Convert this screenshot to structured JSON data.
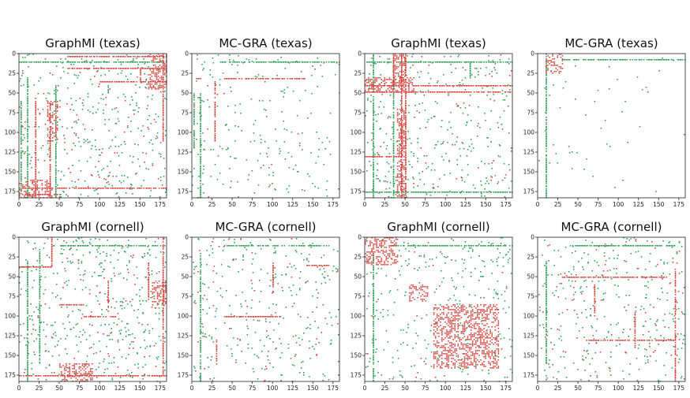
{
  "colors": {
    "positive": "#2e9e55",
    "negative": "#d9413b",
    "axis": "#222222"
  },
  "chart_data": [
    {
      "type": "heatmap",
      "title": "GraphMI (texas)",
      "xlim": [
        0,
        183
      ],
      "ylim": [
        183,
        0
      ],
      "xticks": [
        0,
        25,
        50,
        75,
        100,
        125,
        150,
        175
      ],
      "yticks": [
        0,
        25,
        50,
        75,
        100,
        125,
        150,
        175
      ],
      "seed": 11,
      "density": 0.01,
      "green_lines": [
        [
          0,
          10,
          183,
          10
        ],
        [
          10,
          30,
          10,
          183
        ],
        [
          2,
          60,
          2,
          183
        ],
        [
          45,
          40,
          45,
          183
        ],
        [
          110,
          40,
          110,
          50
        ]
      ],
      "red_lines": [
        [
          60,
          3,
          183,
          3
        ],
        [
          60,
          18,
          183,
          18
        ],
        [
          5,
          170,
          183,
          170
        ],
        [
          5,
          178,
          50,
          178
        ],
        [
          20,
          60,
          20,
          183
        ],
        [
          38,
          60,
          38,
          183
        ],
        [
          178,
          0,
          178,
          110
        ],
        [
          100,
          35,
          183,
          35
        ],
        [
          150,
          18,
          150,
          35
        ]
      ],
      "red_blocks": [
        [
          0,
          160,
          40,
          183
        ],
        [
          160,
          0,
          183,
          45
        ],
        [
          35,
          60,
          48,
          110
        ]
      ],
      "red_scatter": 0.003
    },
    {
      "type": "heatmap",
      "title": "MC-GRA (texas)",
      "xlim": [
        0,
        183
      ],
      "ylim": [
        183,
        0
      ],
      "xticks": [
        0,
        25,
        50,
        75,
        100,
        125,
        150,
        175
      ],
      "yticks": [
        0,
        25,
        50,
        75,
        100,
        125,
        150,
        175
      ],
      "seed": 23,
      "density": 0.006,
      "green_lines": [
        [
          35,
          10,
          183,
          10
        ],
        [
          10,
          50,
          10,
          183
        ],
        [
          2,
          50,
          2,
          120
        ]
      ],
      "red_lines": [
        [
          40,
          31,
          140,
          31
        ],
        [
          5,
          31,
          10,
          31
        ],
        [
          28,
          35,
          28,
          110
        ]
      ],
      "red_blocks": [],
      "red_scatter": 0.0008
    },
    {
      "type": "heatmap",
      "title": "GraphMI (texas)",
      "xlim": [
        0,
        183
      ],
      "ylim": [
        183,
        0
      ],
      "xticks": [
        0,
        25,
        50,
        75,
        100,
        125,
        150,
        175
      ],
      "yticks": [
        0,
        25,
        50,
        75,
        100,
        125,
        150,
        175
      ],
      "seed": 37,
      "density": 0.01,
      "green_lines": [
        [
          0,
          10,
          183,
          10
        ],
        [
          10,
          0,
          10,
          183
        ],
        [
          35,
          0,
          35,
          183
        ],
        [
          130,
          10,
          130,
          30
        ],
        [
          0,
          175,
          183,
          175
        ]
      ],
      "red_lines": [
        [
          0,
          40,
          183,
          40
        ],
        [
          0,
          48,
          183,
          48
        ],
        [
          45,
          0,
          45,
          183
        ],
        [
          50,
          0,
          50,
          183
        ],
        [
          0,
          130,
          45,
          130
        ],
        [
          35,
          0,
          35,
          40
        ]
      ],
      "red_blocks": [
        [
          35,
          0,
          50,
          35
        ],
        [
          0,
          30,
          60,
          48
        ],
        [
          40,
          70,
          50,
          180
        ]
      ],
      "red_scatter": 0.002
    },
    {
      "type": "heatmap",
      "title": "MC-GRA (texas)",
      "xlim": [
        0,
        183
      ],
      "ylim": [
        183,
        0
      ],
      "xticks": [
        0,
        25,
        50,
        75,
        100,
        125,
        150,
        175
      ],
      "yticks": [
        0,
        25,
        50,
        75,
        100,
        125,
        150,
        175
      ],
      "seed": 53,
      "density": 0.0015,
      "green_lines": [
        [
          30,
          7,
          183,
          7
        ],
        [
          10,
          0,
          10,
          183
        ]
      ],
      "red_lines": [],
      "red_blocks": [
        [
          10,
          0,
          30,
          25
        ]
      ],
      "red_scatter": 0.0
    },
    {
      "type": "heatmap",
      "title": "GraphMI (cornell)",
      "xlim": [
        0,
        183
      ],
      "ylim": [
        183,
        0
      ],
      "xticks": [
        0,
        25,
        50,
        75,
        100,
        125,
        150,
        175
      ],
      "yticks": [
        0,
        25,
        50,
        75,
        100,
        125,
        150,
        175
      ],
      "seed": 71,
      "density": 0.012,
      "green_lines": [
        [
          40,
          10,
          183,
          10
        ],
        [
          10,
          30,
          10,
          183
        ],
        [
          25,
          15,
          25,
          160
        ]
      ],
      "red_lines": [
        [
          0,
          37,
          40,
          37
        ],
        [
          40,
          0,
          40,
          37
        ],
        [
          0,
          175,
          183,
          175
        ],
        [
          178,
          0,
          178,
          175
        ],
        [
          50,
          85,
          80,
          85
        ],
        [
          110,
          55,
          110,
          95
        ],
        [
          80,
          100,
          120,
          100
        ],
        [
          160,
          30,
          160,
          80
        ]
      ],
      "red_blocks": [
        [
          50,
          160,
          90,
          183
        ],
        [
          165,
          55,
          183,
          85
        ]
      ],
      "red_scatter": 0.003
    },
    {
      "type": "heatmap",
      "title": "MC-GRA (cornell)",
      "xlim": [
        0,
        183
      ],
      "ylim": [
        183,
        0
      ],
      "xticks": [
        0,
        25,
        50,
        75,
        100,
        125,
        150,
        175
      ],
      "yticks": [
        0,
        25,
        50,
        75,
        100,
        125,
        150,
        175
      ],
      "seed": 83,
      "density": 0.008,
      "green_lines": [
        [
          40,
          10,
          170,
          10
        ],
        [
          10,
          20,
          10,
          183
        ]
      ],
      "red_lines": [
        [
          100,
          30,
          100,
          70
        ],
        [
          140,
          35,
          170,
          35
        ],
        [
          40,
          100,
          110,
          100
        ],
        [
          30,
          130,
          30,
          160
        ]
      ],
      "red_blocks": [],
      "red_scatter": 0.0025
    },
    {
      "type": "heatmap",
      "title": "GraphMI (cornell)",
      "xlim": [
        0,
        183
      ],
      "ylim": [
        183,
        0
      ],
      "xticks": [
        0,
        25,
        50,
        75,
        100,
        125,
        150,
        175
      ],
      "yticks": [
        0,
        25,
        50,
        75,
        100,
        125,
        150,
        175
      ],
      "seed": 97,
      "density": 0.009,
      "green_lines": [
        [
          30,
          10,
          183,
          10
        ],
        [
          10,
          20,
          10,
          183
        ]
      ],
      "red_lines": [],
      "red_blocks": [
        [
          0,
          0,
          40,
          35
        ],
        [
          55,
          60,
          78,
          80
        ],
        [
          85,
          85,
          165,
          165
        ]
      ],
      "red_scatter": 0.001
    },
    {
      "type": "heatmap",
      "title": "MC-GRA (cornell)",
      "xlim": [
        0,
        183
      ],
      "ylim": [
        183,
        0
      ],
      "xticks": [
        0,
        25,
        50,
        75,
        100,
        125,
        150,
        175
      ],
      "yticks": [
        0,
        25,
        50,
        75,
        100,
        125,
        150,
        175
      ],
      "seed": 109,
      "density": 0.009,
      "green_lines": [
        [
          40,
          10,
          170,
          10
        ],
        [
          10,
          30,
          10,
          160
        ]
      ],
      "red_lines": [
        [
          30,
          50,
          160,
          50
        ],
        [
          70,
          60,
          70,
          100
        ],
        [
          60,
          130,
          170,
          130
        ],
        [
          120,
          95,
          120,
          140
        ],
        [
          170,
          40,
          170,
          180
        ]
      ],
      "red_blocks": [],
      "red_scatter": 0.003
    }
  ]
}
